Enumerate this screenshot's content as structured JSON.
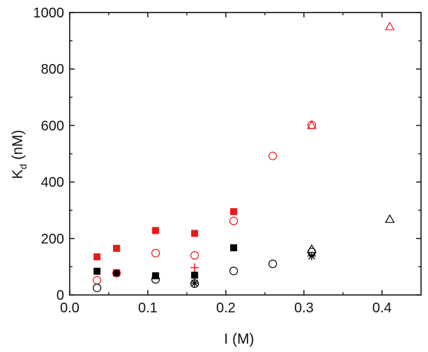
{
  "chart_data": {
    "type": "scatter",
    "title": "",
    "xlabel": "I (M)",
    "ylabel": {
      "main": "K",
      "sub": "d",
      "unit": " (nM)"
    },
    "xlim": [
      0.0,
      0.45
    ],
    "ylim": [
      0,
      1000
    ],
    "xticks": [
      "0.0",
      "0.1",
      "0.2",
      "0.3",
      "0.4"
    ],
    "yticks": [
      "0",
      "200",
      "400",
      "600",
      "800",
      "1000"
    ],
    "grid": false,
    "legend": "none",
    "series": [
      {
        "color": "#e8191a",
        "marker": "filled-square",
        "x": [
          0.035,
          0.06,
          0.11,
          0.16,
          0.21
        ],
        "y": [
          135,
          165,
          228,
          218,
          295
        ]
      },
      {
        "color": "#000000",
        "marker": "filled-square",
        "x": [
          0.035,
          0.06,
          0.11,
          0.16,
          0.21
        ],
        "y": [
          84,
          78,
          68,
          70,
          167
        ]
      },
      {
        "color": "#e8191a",
        "marker": "open-circle",
        "x": [
          0.035,
          0.06,
          0.11,
          0.16,
          0.21,
          0.26,
          0.31
        ],
        "y": [
          52,
          77,
          148,
          140,
          262,
          492,
          602
        ]
      },
      {
        "color": "#000000",
        "marker": "open-circle",
        "x": [
          0.035,
          0.11,
          0.16,
          0.21,
          0.26,
          0.31
        ],
        "y": [
          25,
          55,
          40,
          85,
          110,
          152
        ]
      },
      {
        "color": "#e8191a",
        "marker": "open-triangle",
        "x": [
          0.31,
          0.41
        ],
        "y": [
          600,
          950
        ]
      },
      {
        "color": "#000000",
        "marker": "open-triangle",
        "x": [
          0.31,
          0.41
        ],
        "y": [
          162,
          268
        ]
      },
      {
        "color": "#e8191a",
        "marker": "plus",
        "x": [
          0.16
        ],
        "y": [
          97
        ]
      },
      {
        "color": "#000000",
        "marker": "asterisk",
        "x": [
          0.16,
          0.31
        ],
        "y": [
          42,
          138
        ]
      }
    ]
  }
}
